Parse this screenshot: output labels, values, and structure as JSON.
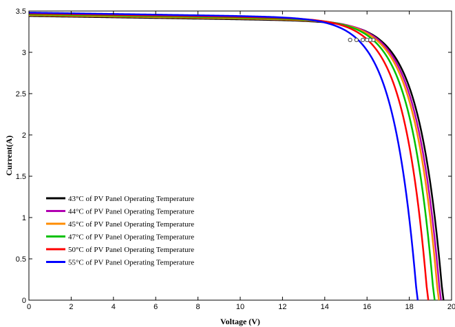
{
  "chart_data": {
    "type": "line",
    "title": "",
    "xlabel": "Voltage (V)",
    "ylabel": "Current(A)",
    "xlim": [
      0,
      20
    ],
    "ylim": [
      0,
      3.5
    ],
    "xticks": [
      0,
      2,
      4,
      6,
      8,
      10,
      12,
      14,
      16,
      18,
      20
    ],
    "xtick_labels": [
      "0",
      "2",
      "4",
      "6",
      "8",
      "10",
      "12",
      "14",
      "16",
      "18",
      "20"
    ],
    "yticks": [
      0,
      0.5,
      1,
      1.5,
      2,
      2.5,
      3,
      3.5
    ],
    "ytick_labels": [
      "0",
      "0.5",
      "1",
      "1.5",
      "2",
      "2.5",
      "3",
      "3.5"
    ],
    "grid": false,
    "legend_position": "bottom-left",
    "series": [
      {
        "name": "43°C of PV Panel Operating Temperature",
        "color": "#000000",
        "isc": 3.44,
        "voc": 19.62,
        "mpp": [
          16.3,
          3.15
        ]
      },
      {
        "name": "44°C of PV Panel Operating Temperature",
        "color": "#b000b0",
        "isc": 3.45,
        "voc": 19.5,
        "mpp": [
          16.15,
          3.15
        ]
      },
      {
        "name": "45°C of PV Panel Operating Temperature",
        "color": "#ff8c00",
        "isc": 3.45,
        "voc": 19.4,
        "mpp": [
          16.0,
          3.15
        ]
      },
      {
        "name": "47°C of PV Panel Operating Temperature",
        "color": "#00c000",
        "isc": 3.46,
        "voc": 19.2,
        "mpp": [
          15.8,
          3.15
        ]
      },
      {
        "name": "50°C of PV Panel Operating Temperature",
        "color": "#ff0000",
        "isc": 3.47,
        "voc": 18.9,
        "mpp": [
          15.5,
          3.15
        ]
      },
      {
        "name": "55°C of PV Panel Operating Temperature",
        "color": "#0000ff",
        "isc": 3.48,
        "voc": 18.4,
        "mpp": [
          15.2,
          3.15
        ]
      }
    ]
  }
}
